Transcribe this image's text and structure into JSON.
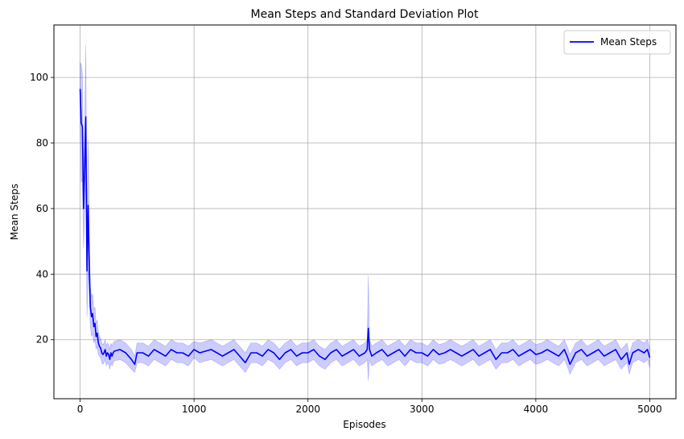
{
  "chart_data": {
    "type": "line",
    "title": "Mean Steps and Standard Deviation Plot",
    "xlabel": "Episodes",
    "ylabel": "Mean Steps",
    "xlim": [
      -230,
      5230
    ],
    "ylim": [
      2,
      116
    ],
    "xticks": [
      0,
      1000,
      2000,
      3000,
      4000,
      5000
    ],
    "yticks": [
      20,
      40,
      60,
      80,
      100
    ],
    "grid": true,
    "legend_position": "top-right",
    "series": [
      {
        "name": "Mean Steps",
        "color": "#0000ff",
        "band": "standard deviation",
        "band_color": "#0000ff",
        "band_opacity": 0.2,
        "x": [
          0,
          10,
          20,
          30,
          40,
          50,
          60,
          70,
          80,
          90,
          100,
          110,
          120,
          130,
          140,
          150,
          160,
          170,
          180,
          190,
          200,
          210,
          220,
          230,
          240,
          250,
          260,
          270,
          280,
          290,
          300,
          350,
          400,
          450,
          480,
          500,
          550,
          600,
          650,
          700,
          750,
          800,
          850,
          900,
          950,
          1000,
          1050,
          1100,
          1150,
          1200,
          1250,
          1300,
          1350,
          1400,
          1450,
          1500,
          1550,
          1600,
          1650,
          1700,
          1750,
          1800,
          1850,
          1900,
          1950,
          2000,
          2050,
          2100,
          2150,
          2200,
          2250,
          2300,
          2350,
          2400,
          2450,
          2500,
          2520,
          2530,
          2540,
          2560,
          2600,
          2650,
          2700,
          2750,
          2800,
          2850,
          2900,
          2950,
          3000,
          3050,
          3100,
          3150,
          3200,
          3250,
          3300,
          3350,
          3400,
          3450,
          3500,
          3550,
          3600,
          3650,
          3700,
          3750,
          3800,
          3850,
          3900,
          3950,
          4000,
          4050,
          4100,
          4150,
          4200,
          4250,
          4280,
          4300,
          4350,
          4400,
          4450,
          4500,
          4550,
          4600,
          4650,
          4700,
          4750,
          4800,
          4820,
          4850,
          4900,
          4950,
          4980,
          5000
        ],
        "values": [
          96.5,
          86,
          85,
          60,
          72,
          88,
          41,
          61,
          43,
          30,
          27,
          28,
          24,
          25,
          21,
          22,
          19,
          18,
          17.5,
          16,
          15.5,
          16,
          17,
          15,
          16,
          15.5,
          14,
          16,
          15,
          16,
          16.5,
          17,
          16,
          14,
          12.5,
          16,
          16,
          15,
          17,
          16,
          15,
          17,
          16,
          16,
          15,
          17,
          16,
          16.5,
          17,
          16,
          15,
          16,
          17,
          15,
          13,
          16,
          16,
          15,
          17,
          16,
          14,
          16,
          17,
          15,
          16,
          16,
          17,
          15,
          14,
          16,
          17,
          15,
          16,
          17,
          15,
          16,
          17,
          23.5,
          17,
          15,
          16,
          17,
          15,
          16,
          17,
          15,
          17,
          16,
          16,
          15,
          17,
          15.5,
          16,
          17,
          16,
          15,
          16,
          17,
          15,
          16,
          17,
          14,
          16,
          16,
          17,
          15,
          16,
          17,
          15.5,
          16,
          17,
          16,
          15,
          17,
          14.5,
          12.5,
          16,
          17,
          15,
          16,
          17,
          15,
          16,
          17,
          14,
          16,
          12.5,
          16,
          17,
          16,
          17,
          14.5
        ],
        "std": [
          8,
          18,
          16,
          12,
          13,
          22,
          14,
          20,
          10,
          6,
          6,
          6,
          5,
          5,
          4,
          4,
          3.5,
          3,
          3,
          3,
          3,
          3,
          3,
          3,
          3,
          3,
          3,
          3,
          3,
          3,
          3,
          3,
          3,
          3,
          2.5,
          3,
          3,
          3,
          3,
          3,
          3,
          3,
          3,
          3,
          3,
          2.5,
          3,
          3,
          3,
          3,
          3,
          3,
          3,
          3,
          3,
          3,
          3,
          3,
          3,
          3,
          3,
          3,
          3,
          3,
          3,
          3,
          3,
          3,
          3,
          3,
          3,
          3,
          3,
          3,
          3,
          3,
          3,
          16,
          3,
          3,
          3,
          3,
          3,
          3,
          3,
          3,
          3,
          3,
          3,
          3,
          3,
          3,
          3,
          3,
          3,
          3,
          3,
          3,
          3,
          3,
          3,
          3,
          3,
          3,
          3,
          3,
          3,
          3,
          3,
          3,
          3,
          3,
          3,
          3,
          3,
          3,
          3,
          3,
          3,
          3,
          3,
          3,
          3,
          3,
          3,
          3,
          3,
          3,
          3,
          3,
          3,
          3
        ]
      }
    ]
  }
}
